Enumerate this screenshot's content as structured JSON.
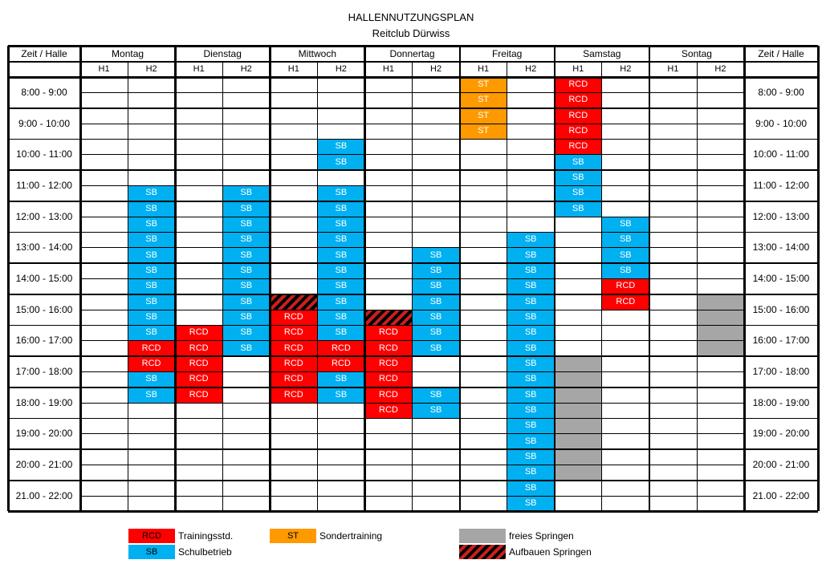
{
  "title": "HALLENNUTZUNGSPLAN",
  "subtitle": "Reitclub Dürwiss",
  "corner_left": "Zeit / Halle",
  "corner_right": "Zeit / Halle",
  "days": [
    "Montag",
    "Dienstag",
    "Mittwoch",
    "Donnertag",
    "Freitag",
    "Samstag",
    "Sontag"
  ],
  "halls": [
    "H1",
    "H2"
  ],
  "hours": [
    "8:00 - 9:00",
    "9:00 - 10:00",
    "10:00 - 11:00",
    "11:00 - 12:00",
    "12:00 - 13:00",
    "13:00 - 14:00",
    "14:00 - 15:00",
    "15:00 - 16:00",
    "16:00 - 17:00",
    "17:00 - 18:00",
    "18:00 - 19:00",
    "19:00 - 20:00",
    "20:00 - 21:00",
    "21.00 - 22:00"
  ],
  "colors": {
    "RCD": "#ff0000",
    "SB": "#00b0f0",
    "ST": "#ff9900",
    "FS": "#a6a6a6"
  },
  "blocks": [
    {
      "day": 0,
      "hall": 1,
      "slot": 7,
      "type": "SB"
    },
    {
      "day": 0,
      "hall": 1,
      "slot": 8,
      "type": "SB"
    },
    {
      "day": 0,
      "hall": 1,
      "slot": 9,
      "type": "SB"
    },
    {
      "day": 0,
      "hall": 1,
      "slot": 10,
      "type": "SB"
    },
    {
      "day": 0,
      "hall": 1,
      "slot": 11,
      "type": "SB"
    },
    {
      "day": 0,
      "hall": 1,
      "slot": 12,
      "type": "SB"
    },
    {
      "day": 0,
      "hall": 1,
      "slot": 13,
      "type": "SB"
    },
    {
      "day": 0,
      "hall": 1,
      "slot": 14,
      "type": "SB"
    },
    {
      "day": 0,
      "hall": 1,
      "slot": 15,
      "type": "SB"
    },
    {
      "day": 0,
      "hall": 1,
      "slot": 16,
      "type": "SB"
    },
    {
      "day": 0,
      "hall": 1,
      "slot": 17,
      "type": "RCD"
    },
    {
      "day": 0,
      "hall": 1,
      "slot": 18,
      "type": "RCD"
    },
    {
      "day": 0,
      "hall": 1,
      "slot": 19,
      "type": "SB"
    },
    {
      "day": 0,
      "hall": 1,
      "slot": 20,
      "type": "SB"
    },
    {
      "day": 1,
      "hall": 0,
      "slot": 16,
      "type": "RCD"
    },
    {
      "day": 1,
      "hall": 0,
      "slot": 17,
      "type": "RCD"
    },
    {
      "day": 1,
      "hall": 0,
      "slot": 18,
      "type": "RCD"
    },
    {
      "day": 1,
      "hall": 0,
      "slot": 19,
      "type": "RCD"
    },
    {
      "day": 1,
      "hall": 0,
      "slot": 20,
      "type": "RCD"
    },
    {
      "day": 1,
      "hall": 1,
      "slot": 7,
      "type": "SB"
    },
    {
      "day": 1,
      "hall": 1,
      "slot": 8,
      "type": "SB"
    },
    {
      "day": 1,
      "hall": 1,
      "slot": 9,
      "type": "SB"
    },
    {
      "day": 1,
      "hall": 1,
      "slot": 10,
      "type": "SB"
    },
    {
      "day": 1,
      "hall": 1,
      "slot": 11,
      "type": "SB"
    },
    {
      "day": 1,
      "hall": 1,
      "slot": 12,
      "type": "SB"
    },
    {
      "day": 1,
      "hall": 1,
      "slot": 13,
      "type": "SB"
    },
    {
      "day": 1,
      "hall": 1,
      "slot": 14,
      "type": "SB"
    },
    {
      "day": 1,
      "hall": 1,
      "slot": 15,
      "type": "SB"
    },
    {
      "day": 1,
      "hall": 1,
      "slot": 16,
      "type": "SB"
    },
    {
      "day": 1,
      "hall": 1,
      "slot": 17,
      "type": "SB"
    },
    {
      "day": 2,
      "hall": 0,
      "slot": 14,
      "type": "HATCH"
    },
    {
      "day": 2,
      "hall": 0,
      "slot": 15,
      "type": "RCD"
    },
    {
      "day": 2,
      "hall": 0,
      "slot": 16,
      "type": "RCD"
    },
    {
      "day": 2,
      "hall": 0,
      "slot": 17,
      "type": "RCD"
    },
    {
      "day": 2,
      "hall": 0,
      "slot": 18,
      "type": "RCD"
    },
    {
      "day": 2,
      "hall": 0,
      "slot": 19,
      "type": "RCD"
    },
    {
      "day": 2,
      "hall": 0,
      "slot": 20,
      "type": "RCD"
    },
    {
      "day": 2,
      "hall": 1,
      "slot": 4,
      "type": "SB"
    },
    {
      "day": 2,
      "hall": 1,
      "slot": 5,
      "type": "SB"
    },
    {
      "day": 2,
      "hall": 1,
      "slot": 7,
      "type": "SB"
    },
    {
      "day": 2,
      "hall": 1,
      "slot": 8,
      "type": "SB"
    },
    {
      "day": 2,
      "hall": 1,
      "slot": 9,
      "type": "SB"
    },
    {
      "day": 2,
      "hall": 1,
      "slot": 10,
      "type": "SB"
    },
    {
      "day": 2,
      "hall": 1,
      "slot": 11,
      "type": "SB"
    },
    {
      "day": 2,
      "hall": 1,
      "slot": 12,
      "type": "SB"
    },
    {
      "day": 2,
      "hall": 1,
      "slot": 13,
      "type": "SB"
    },
    {
      "day": 2,
      "hall": 1,
      "slot": 14,
      "type": "SB"
    },
    {
      "day": 2,
      "hall": 1,
      "slot": 15,
      "type": "SB"
    },
    {
      "day": 2,
      "hall": 1,
      "slot": 16,
      "type": "SB"
    },
    {
      "day": 2,
      "hall": 1,
      "slot": 17,
      "type": "RCD"
    },
    {
      "day": 2,
      "hall": 1,
      "slot": 18,
      "type": "RCD"
    },
    {
      "day": 2,
      "hall": 1,
      "slot": 19,
      "type": "SB"
    },
    {
      "day": 2,
      "hall": 1,
      "slot": 20,
      "type": "SB"
    },
    {
      "day": 3,
      "hall": 0,
      "slot": 15,
      "type": "HATCH"
    },
    {
      "day": 3,
      "hall": 0,
      "slot": 16,
      "type": "RCD"
    },
    {
      "day": 3,
      "hall": 0,
      "slot": 17,
      "type": "RCD"
    },
    {
      "day": 3,
      "hall": 0,
      "slot": 18,
      "type": "RCD"
    },
    {
      "day": 3,
      "hall": 0,
      "slot": 19,
      "type": "RCD"
    },
    {
      "day": 3,
      "hall": 0,
      "slot": 20,
      "type": "RCD"
    },
    {
      "day": 3,
      "hall": 0,
      "slot": 21,
      "type": "RCD"
    },
    {
      "day": 3,
      "hall": 1,
      "slot": 11,
      "type": "SB"
    },
    {
      "day": 3,
      "hall": 1,
      "slot": 12,
      "type": "SB"
    },
    {
      "day": 3,
      "hall": 1,
      "slot": 13,
      "type": "SB"
    },
    {
      "day": 3,
      "hall": 1,
      "slot": 14,
      "type": "SB"
    },
    {
      "day": 3,
      "hall": 1,
      "slot": 15,
      "type": "SB"
    },
    {
      "day": 3,
      "hall": 1,
      "slot": 16,
      "type": "SB"
    },
    {
      "day": 3,
      "hall": 1,
      "slot": 17,
      "type": "SB"
    },
    {
      "day": 3,
      "hall": 1,
      "slot": 20,
      "type": "SB"
    },
    {
      "day": 3,
      "hall": 1,
      "slot": 21,
      "type": "SB"
    },
    {
      "day": 4,
      "hall": 0,
      "slot": 0,
      "type": "ST"
    },
    {
      "day": 4,
      "hall": 0,
      "slot": 1,
      "type": "ST"
    },
    {
      "day": 4,
      "hall": 0,
      "slot": 2,
      "type": "ST"
    },
    {
      "day": 4,
      "hall": 0,
      "slot": 3,
      "type": "ST"
    },
    {
      "day": 4,
      "hall": 1,
      "slot": 10,
      "type": "SB"
    },
    {
      "day": 4,
      "hall": 1,
      "slot": 11,
      "type": "SB"
    },
    {
      "day": 4,
      "hall": 1,
      "slot": 12,
      "type": "SB"
    },
    {
      "day": 4,
      "hall": 1,
      "slot": 13,
      "type": "SB"
    },
    {
      "day": 4,
      "hall": 1,
      "slot": 14,
      "type": "SB"
    },
    {
      "day": 4,
      "hall": 1,
      "slot": 15,
      "type": "SB"
    },
    {
      "day": 4,
      "hall": 1,
      "slot": 16,
      "type": "SB"
    },
    {
      "day": 4,
      "hall": 1,
      "slot": 17,
      "type": "SB"
    },
    {
      "day": 4,
      "hall": 1,
      "slot": 18,
      "type": "SB"
    },
    {
      "day": 4,
      "hall": 1,
      "slot": 19,
      "type": "SB"
    },
    {
      "day": 4,
      "hall": 1,
      "slot": 20,
      "type": "SB"
    },
    {
      "day": 4,
      "hall": 1,
      "slot": 21,
      "type": "SB"
    },
    {
      "day": 4,
      "hall": 1,
      "slot": 22,
      "type": "SB"
    },
    {
      "day": 4,
      "hall": 1,
      "slot": 23,
      "type": "SB"
    },
    {
      "day": 4,
      "hall": 1,
      "slot": 24,
      "type": "SB"
    },
    {
      "day": 4,
      "hall": 1,
      "slot": 25,
      "type": "SB"
    },
    {
      "day": 4,
      "hall": 1,
      "slot": 26,
      "type": "SB"
    },
    {
      "day": 4,
      "hall": 1,
      "slot": 27,
      "type": "SB"
    },
    {
      "day": 5,
      "hall": 0,
      "slot": 0,
      "type": "RCD"
    },
    {
      "day": 5,
      "hall": 0,
      "slot": 1,
      "type": "RCD"
    },
    {
      "day": 5,
      "hall": 0,
      "slot": 2,
      "type": "RCD"
    },
    {
      "day": 5,
      "hall": 0,
      "slot": 3,
      "type": "RCD"
    },
    {
      "day": 5,
      "hall": 0,
      "slot": 4,
      "type": "RCD"
    },
    {
      "day": 5,
      "hall": 0,
      "slot": 5,
      "type": "SB"
    },
    {
      "day": 5,
      "hall": 0,
      "slot": 6,
      "type": "SB"
    },
    {
      "day": 5,
      "hall": 0,
      "slot": 7,
      "type": "SB"
    },
    {
      "day": 5,
      "hall": 0,
      "slot": 8,
      "type": "SB"
    },
    {
      "day": 5,
      "hall": 0,
      "slot": 18,
      "type": "FS"
    },
    {
      "day": 5,
      "hall": 0,
      "slot": 19,
      "type": "FS"
    },
    {
      "day": 5,
      "hall": 0,
      "slot": 20,
      "type": "FS"
    },
    {
      "day": 5,
      "hall": 0,
      "slot": 21,
      "type": "FS"
    },
    {
      "day": 5,
      "hall": 0,
      "slot": 22,
      "type": "FS"
    },
    {
      "day": 5,
      "hall": 0,
      "slot": 23,
      "type": "FS"
    },
    {
      "day": 5,
      "hall": 0,
      "slot": 24,
      "type": "FS"
    },
    {
      "day": 5,
      "hall": 0,
      "slot": 25,
      "type": "FS"
    },
    {
      "day": 5,
      "hall": 1,
      "slot": 9,
      "type": "SB"
    },
    {
      "day": 5,
      "hall": 1,
      "slot": 10,
      "type": "SB"
    },
    {
      "day": 5,
      "hall": 1,
      "slot": 11,
      "type": "SB"
    },
    {
      "day": 5,
      "hall": 1,
      "slot": 12,
      "type": "SB"
    },
    {
      "day": 5,
      "hall": 1,
      "slot": 13,
      "type": "RCD"
    },
    {
      "day": 5,
      "hall": 1,
      "slot": 14,
      "type": "RCD"
    },
    {
      "day": 6,
      "hall": 1,
      "slot": 14,
      "type": "FS"
    },
    {
      "day": 6,
      "hall": 1,
      "slot": 15,
      "type": "FS"
    },
    {
      "day": 6,
      "hall": 1,
      "slot": 16,
      "type": "FS"
    },
    {
      "day": 6,
      "hall": 1,
      "slot": 17,
      "type": "FS"
    }
  ],
  "legend": [
    {
      "code": "RCD",
      "label": "Trainingsstd."
    },
    {
      "code": "SB",
      "label": "Schulbetrieb"
    },
    {
      "code": "ST",
      "label": "Sondertraining"
    },
    {
      "code": "",
      "label": "freies Springen"
    },
    {
      "code": "",
      "label": "Aufbauen Springen"
    }
  ]
}
